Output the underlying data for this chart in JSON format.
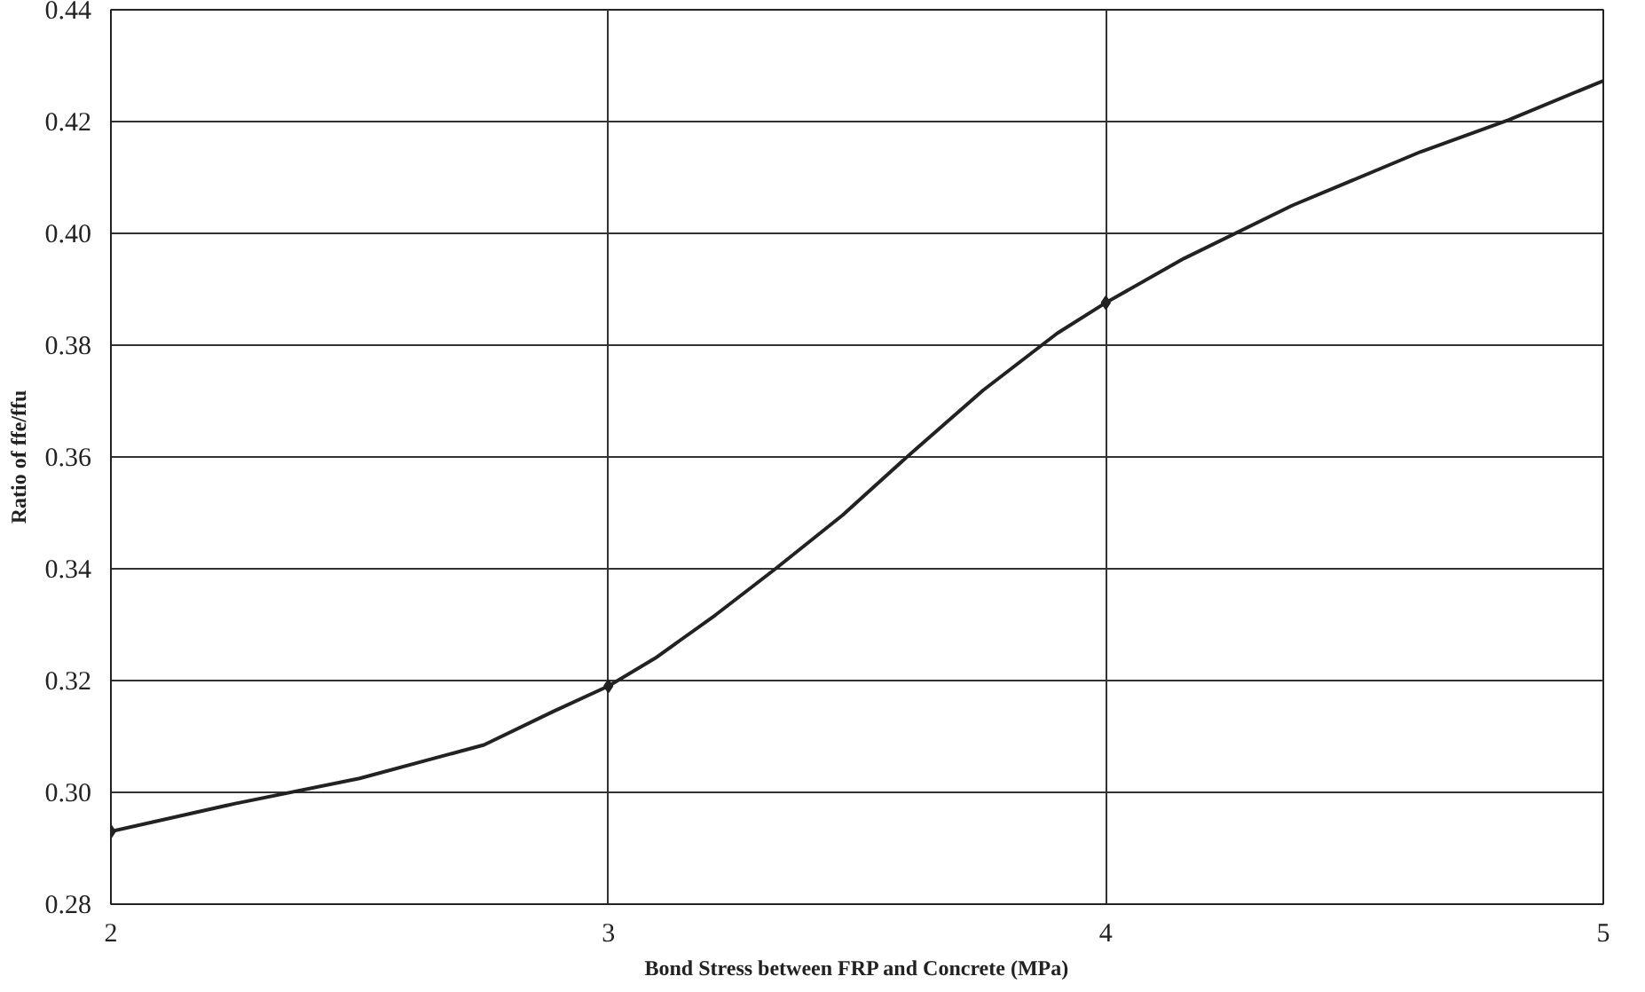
{
  "chart_data": {
    "type": "line",
    "xlabel": "Bond Stress between FRP and Concrete (MPa)",
    "ylabel": "Ratio of ffe/ffu",
    "x": [
      2,
      2.25,
      2.5,
      2.75,
      2.89,
      3,
      3.094,
      3.215,
      3.336,
      3.471,
      3.604,
      3.753,
      3.902,
      4,
      4.157,
      4.375,
      4.633,
      4.81,
      5
    ],
    "series": [
      {
        "color": "#222222",
        "values": [
          0.293,
          0.298,
          0.3025,
          0.3085,
          0.3145,
          0.319,
          0.324,
          0.3317,
          0.34,
          0.3496,
          0.3603,
          0.3719,
          0.3821,
          0.3876,
          0.3955,
          0.405,
          0.4146,
          0.4203,
          0.4273
        ]
      },
      {
        "type": "scatter",
        "color": "#222222",
        "x": [
          2,
          3,
          4
        ],
        "values": [
          0.293,
          0.319,
          0.3876
        ],
        "marker": "diamond"
      }
    ],
    "xlim": [
      2,
      5
    ],
    "xticks": [
      2,
      3,
      4,
      5
    ],
    "ylim": [
      0.28,
      0.44
    ],
    "yticks": [
      {
        "value": 0.28,
        "label": "0.28"
      },
      {
        "value": 0.3,
        "label": "0.30"
      },
      {
        "value": 0.32,
        "label": "0.32"
      },
      {
        "value": 0.34,
        "label": "0.34"
      },
      {
        "value": 0.36,
        "label": "0.36"
      },
      {
        "value": 0.38,
        "label": "0.38"
      },
      {
        "value": 0.4,
        "label": "0.40"
      },
      {
        "value": 0.42,
        "label": "0.42"
      },
      {
        "value": 0.44,
        "label": "0.44"
      }
    ],
    "grid": true,
    "line_style": "solid"
  }
}
